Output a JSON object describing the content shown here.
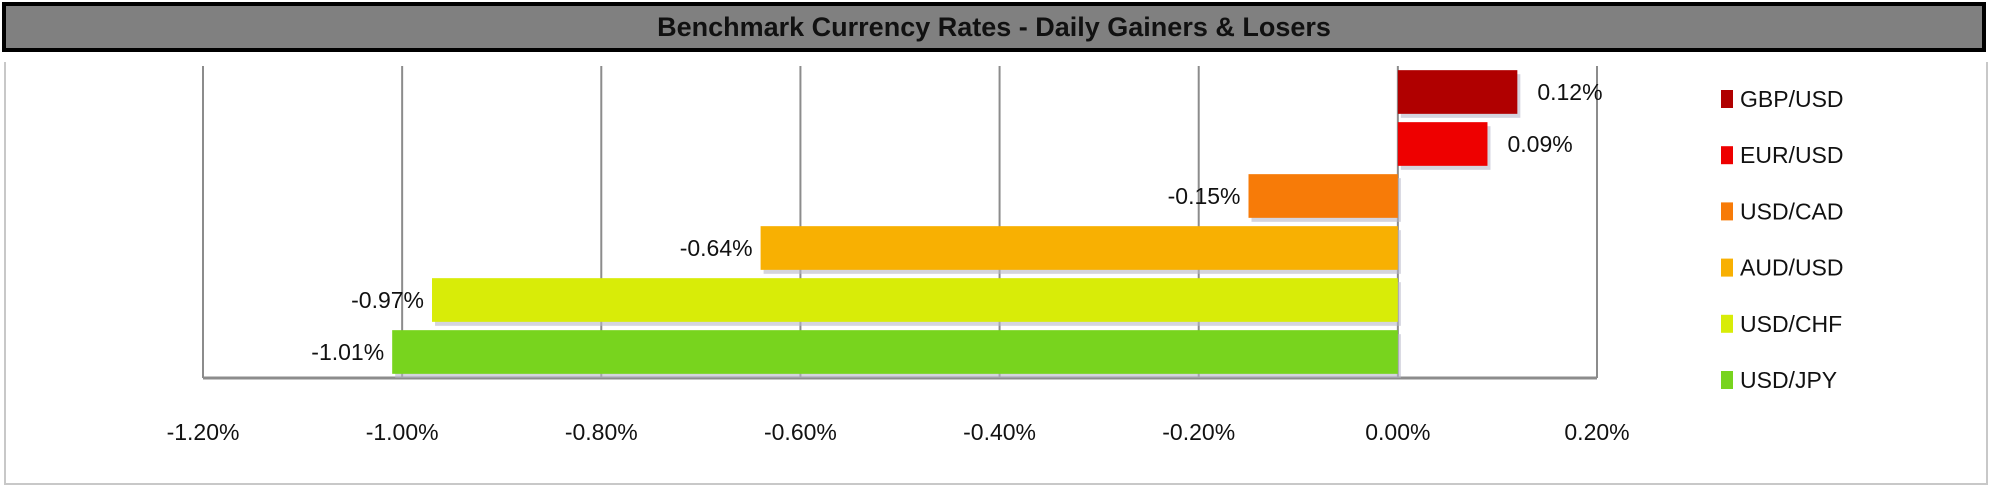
{
  "chart_data": {
    "type": "bar",
    "orientation": "horizontal",
    "title": "Benchmark Currency Rates - Daily Gainers & Losers",
    "categories": [
      "GBP/USD",
      "EUR/USD",
      "USD/CAD",
      "AUD/USD",
      "USD/CHF",
      "USD/JPY"
    ],
    "values": [
      0.12,
      0.09,
      -0.15,
      -0.64,
      -0.97,
      -1.01
    ],
    "data_labels": [
      "0.12%",
      "0.09%",
      "-0.15%",
      "-0.64%",
      "-0.97%",
      "-1.01%"
    ],
    "colors": [
      "#b00000",
      "#ee0000",
      "#f77b08",
      "#f8b002",
      "#d8ec08",
      "#78d41e"
    ],
    "xlim": [
      -1.2,
      0.2
    ],
    "xticks": [
      -1.2,
      -1.0,
      -0.8,
      -0.6,
      -0.4,
      -0.2,
      0.0,
      0.2
    ],
    "xtick_labels": [
      "-1.20%",
      "-1.00%",
      "-0.80%",
      "-0.60%",
      "-0.40%",
      "-0.20%",
      "0.00%",
      "0.20%"
    ],
    "grid": "vertical",
    "legend": "right"
  }
}
